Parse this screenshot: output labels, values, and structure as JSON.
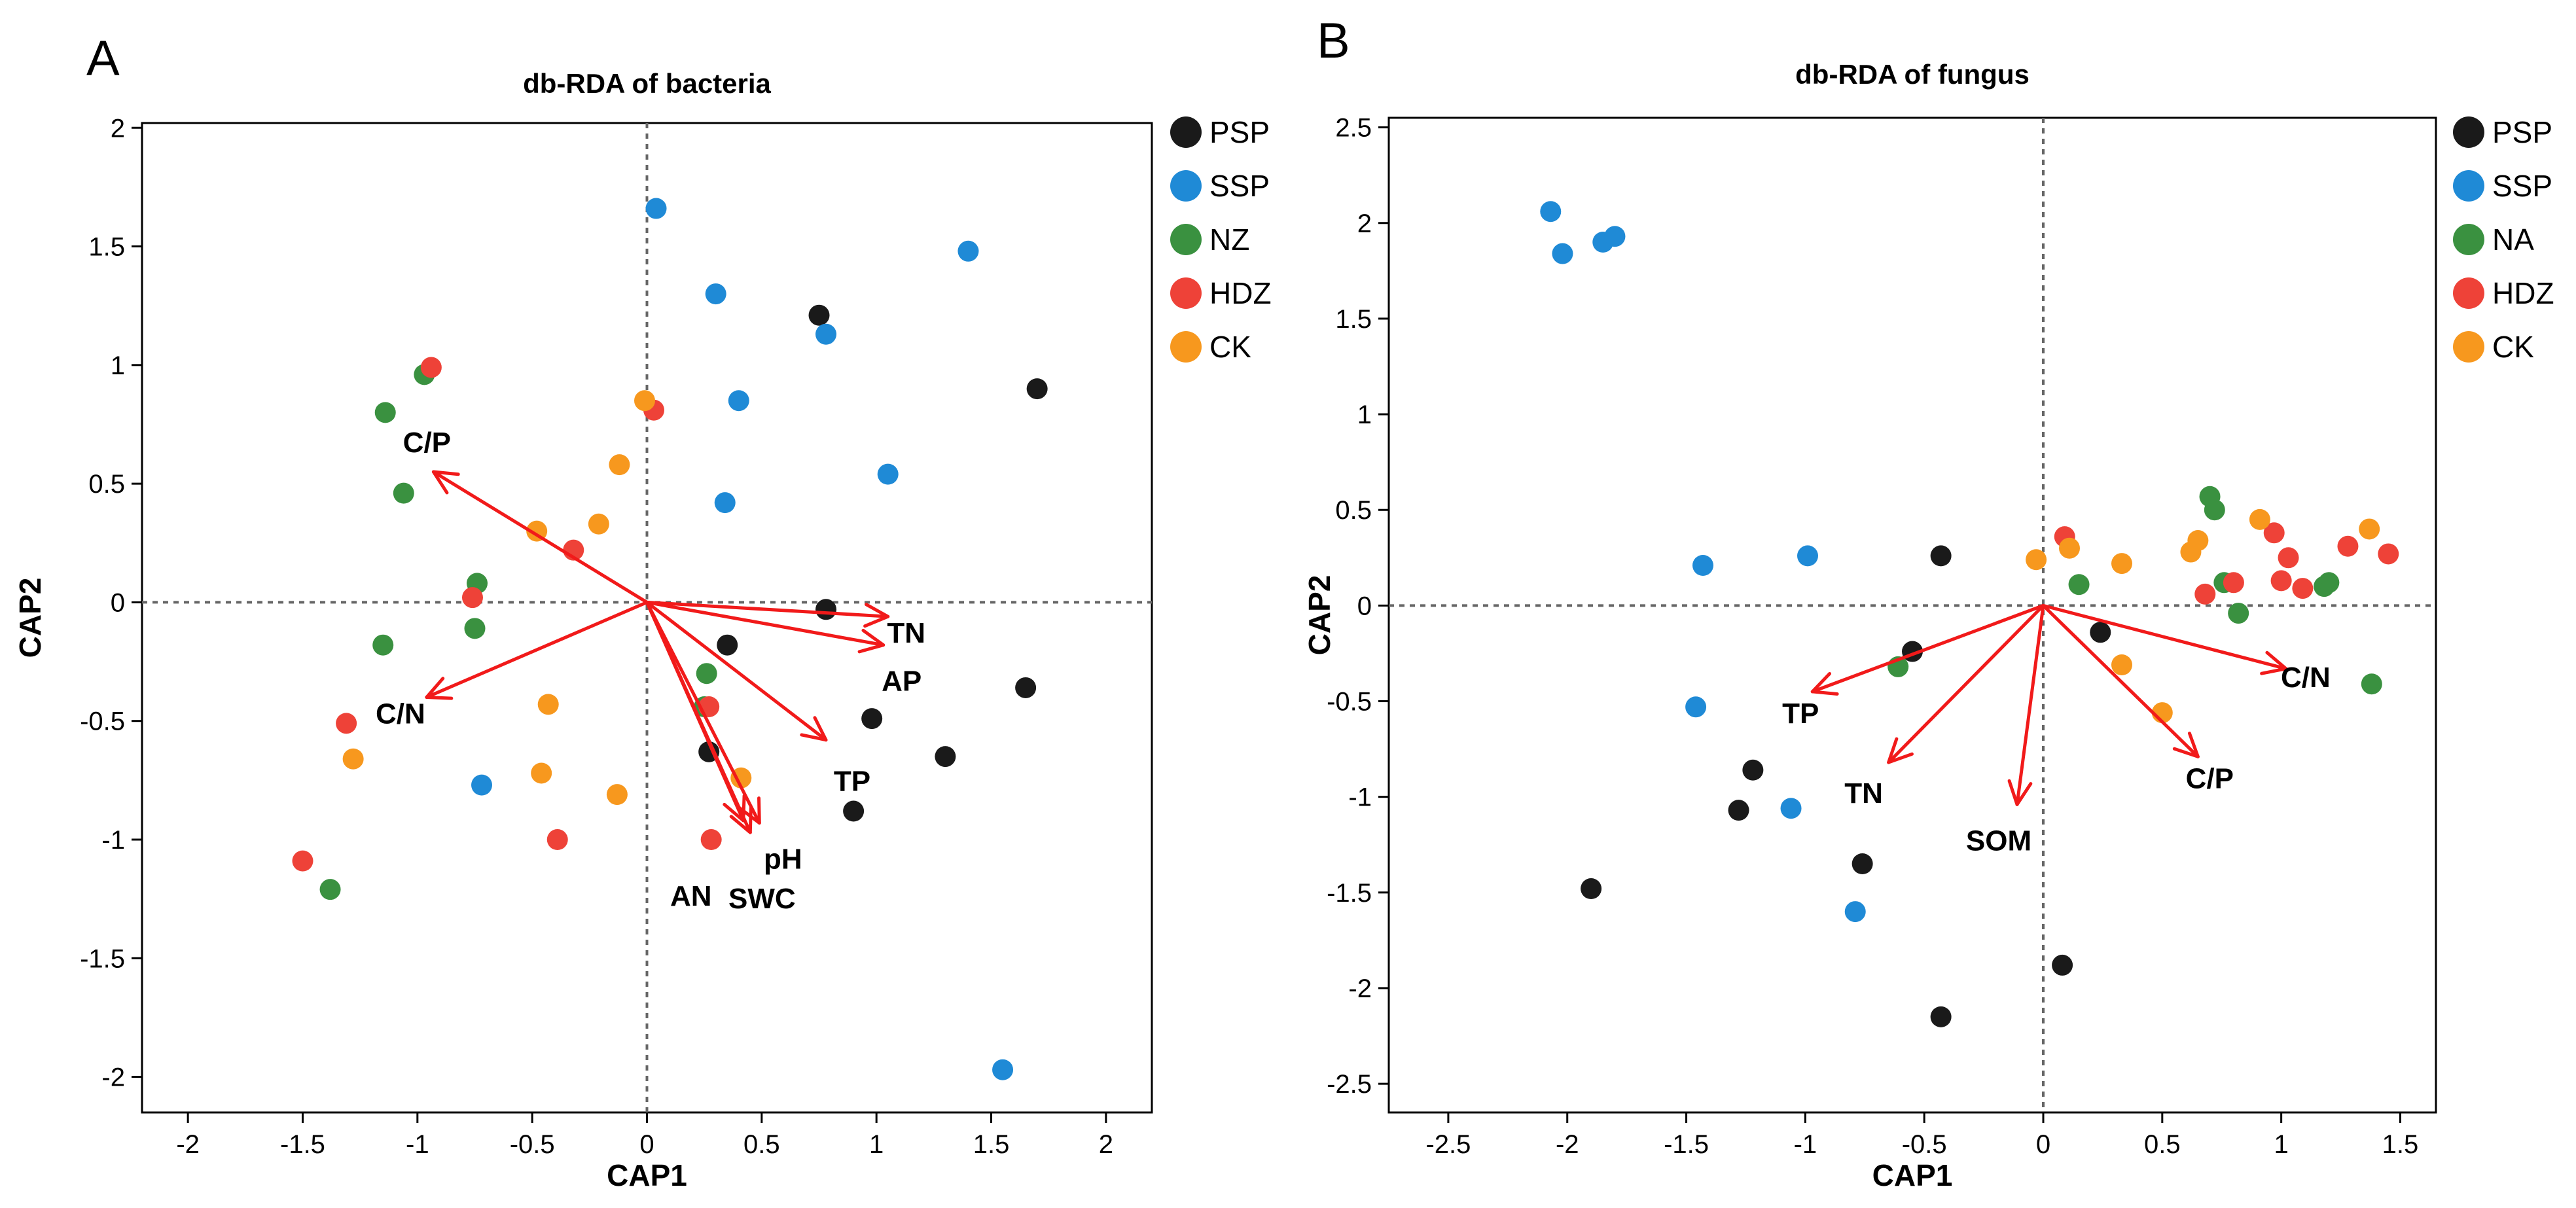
{
  "figure": {
    "panel_A_letter": "A",
    "panel_B_letter": "B"
  },
  "colors": {
    "PSP": "#1a1a1a",
    "SSP": "#1f8ad6",
    "green": "#3a9140",
    "HDZ": "#ee4238",
    "CK": "#f7981e",
    "arrow": "#f11a1a"
  },
  "chart_data": [
    {
      "type": "scatter",
      "panel": "A",
      "title": "db-RDA of bacteria",
      "xlabel": "CAP1",
      "ylabel": "CAP2",
      "xlim": [
        -2.2,
        2.2
      ],
      "ylim": [
        -2.15,
        2.02
      ],
      "xticks": [
        -2,
        -1.5,
        -1,
        -0.5,
        0,
        0.5,
        1,
        1.5,
        2
      ],
      "yticks": [
        -2,
        -1.5,
        -1,
        -0.5,
        0,
        0.5,
        1,
        1.5,
        2
      ],
      "xtick_labels": [
        "-2",
        "-1.5",
        "-1",
        "-0.5",
        "0",
        "0.5",
        "1",
        "1.5",
        "2"
      ],
      "ytick_labels": [
        "-2",
        "-1.5",
        "-1",
        "-0.5",
        "0",
        "0.5",
        "1",
        "1.5",
        "2"
      ],
      "reference_lines": {
        "x": 0,
        "y": 0
      },
      "legend_position": "right",
      "series": [
        {
          "name": "PSP",
          "color": "#1a1a1a",
          "points": [
            [
              0.75,
              1.21
            ],
            [
              1.7,
              0.9
            ],
            [
              0.78,
              -0.03
            ],
            [
              0.35,
              -0.18
            ],
            [
              0.98,
              -0.49
            ],
            [
              1.65,
              -0.36
            ],
            [
              1.3,
              -0.65
            ],
            [
              0.9,
              -0.88
            ],
            [
              0.27,
              -0.63
            ]
          ]
        },
        {
          "name": "SSP",
          "color": "#1f8ad6",
          "points": [
            [
              0.04,
              1.66
            ],
            [
              0.3,
              1.3
            ],
            [
              0.78,
              1.13
            ],
            [
              0.4,
              0.85
            ],
            [
              1.4,
              1.48
            ],
            [
              1.05,
              0.54
            ],
            [
              0.34,
              0.42
            ],
            [
              -0.72,
              -0.77
            ],
            [
              1.55,
              -1.97
            ]
          ]
        },
        {
          "name": "NZ",
          "color": "#3a9140",
          "points": [
            [
              -0.97,
              0.96
            ],
            [
              -1.14,
              0.8
            ],
            [
              -1.06,
              0.46
            ],
            [
              -0.74,
              0.08
            ],
            [
              -0.75,
              -0.11
            ],
            [
              -1.15,
              -0.18
            ],
            [
              0.26,
              -0.3
            ],
            [
              0.25,
              -0.44
            ],
            [
              -1.38,
              -1.21
            ]
          ]
        },
        {
          "name": "HDZ",
          "color": "#ee4238",
          "points": [
            [
              -0.94,
              0.99
            ],
            [
              0.03,
              0.81
            ],
            [
              -0.32,
              0.22
            ],
            [
              -0.76,
              0.02
            ],
            [
              0.27,
              -0.44
            ],
            [
              -1.31,
              -0.51
            ],
            [
              -1.5,
              -1.09
            ],
            [
              -0.39,
              -1.0
            ],
            [
              0.28,
              -1.0
            ]
          ]
        },
        {
          "name": "CK",
          "color": "#f7981e",
          "points": [
            [
              -0.01,
              0.85
            ],
            [
              -0.12,
              0.58
            ],
            [
              -0.21,
              0.33
            ],
            [
              -0.48,
              0.3
            ],
            [
              -0.43,
              -0.43
            ],
            [
              -1.28,
              -0.66
            ],
            [
              -0.46,
              -0.72
            ],
            [
              0.41,
              -0.74
            ],
            [
              -0.13,
              -0.81
            ]
          ]
        }
      ],
      "vectors": [
        {
          "label": "C/P",
          "x": -0.93,
          "y": 0.55
        },
        {
          "label": "C/N",
          "x": -0.96,
          "y": -0.4
        },
        {
          "label": "TN",
          "x": 1.05,
          "y": -0.06
        },
        {
          "label": "AP",
          "x": 1.03,
          "y": -0.18
        },
        {
          "label": "TP",
          "x": 0.78,
          "y": -0.58
        },
        {
          "label": "pH",
          "x": 0.49,
          "y": -0.93
        },
        {
          "label": "SWC",
          "x": 0.45,
          "y": -0.97
        },
        {
          "label": "AN",
          "x": 0.42,
          "y": -0.92
        }
      ]
    },
    {
      "type": "scatter",
      "panel": "B",
      "title": "db-RDA of fungus",
      "xlabel": "CAP1",
      "ylabel": "CAP2",
      "xlim": [
        -2.75,
        1.65
      ],
      "ylim": [
        -2.65,
        2.55
      ],
      "xticks": [
        -2.5,
        -2,
        -1.5,
        -1,
        -0.5,
        0,
        0.5,
        1,
        1.5
      ],
      "yticks": [
        -2.5,
        -2,
        -1.5,
        -1,
        -0.5,
        0,
        0.5,
        1,
        1.5,
        2,
        2.5
      ],
      "xtick_labels": [
        "-2.5",
        "-2",
        "-1.5",
        "-1",
        "-0.5",
        "0",
        "0.5",
        "1",
        "1.5"
      ],
      "ytick_labels": [
        "-2.5",
        "-2",
        "-1.5",
        "-1",
        "-0.5",
        "0",
        "0.5",
        "1",
        "1.5",
        "2",
        "2.5"
      ],
      "reference_lines": {
        "x": 0,
        "y": 0
      },
      "legend_position": "right",
      "series": [
        {
          "name": "PSP",
          "color": "#1a1a1a",
          "points": [
            [
              -0.43,
              0.26
            ],
            [
              -0.55,
              -0.24
            ],
            [
              0.24,
              -0.14
            ],
            [
              -1.22,
              -0.86
            ],
            [
              -1.28,
              -1.07
            ],
            [
              -0.76,
              -1.35
            ],
            [
              -1.9,
              -1.48
            ],
            [
              0.08,
              -1.88
            ],
            [
              -0.43,
              -2.15
            ]
          ]
        },
        {
          "name": "SSP",
          "color": "#1f8ad6",
          "points": [
            [
              -2.07,
              2.06
            ],
            [
              -1.85,
              1.9
            ],
            [
              -1.8,
              1.93
            ],
            [
              -2.02,
              1.84
            ],
            [
              -1.43,
              0.21
            ],
            [
              -0.99,
              0.26
            ],
            [
              -1.46,
              -0.53
            ],
            [
              -1.06,
              -1.06
            ],
            [
              -0.79,
              -1.6
            ]
          ]
        },
        {
          "name": "NA",
          "color": "#3a9140",
          "points": [
            [
              0.7,
              0.57
            ],
            [
              0.72,
              0.5
            ],
            [
              0.76,
              0.12
            ],
            [
              0.15,
              0.11
            ],
            [
              0.82,
              -0.04
            ],
            [
              1.18,
              0.1
            ],
            [
              1.2,
              0.12
            ],
            [
              -0.61,
              -0.32
            ],
            [
              1.38,
              -0.41
            ]
          ]
        },
        {
          "name": "HDZ",
          "color": "#ee4238",
          "points": [
            [
              0.09,
              0.36
            ],
            [
              0.97,
              0.38
            ],
            [
              1.03,
              0.25
            ],
            [
              1.28,
              0.31
            ],
            [
              1.45,
              0.27
            ],
            [
              0.8,
              0.12
            ],
            [
              1.0,
              0.13
            ],
            [
              1.09,
              0.09
            ],
            [
              0.68,
              0.06
            ]
          ]
        },
        {
          "name": "CK",
          "color": "#f7981e",
          "points": [
            [
              -0.03,
              0.24
            ],
            [
              0.11,
              0.3
            ],
            [
              0.33,
              0.22
            ],
            [
              0.65,
              0.34
            ],
            [
              0.62,
              0.28
            ],
            [
              0.91,
              0.45
            ],
            [
              1.37,
              0.4
            ],
            [
              0.33,
              -0.31
            ],
            [
              0.5,
              -0.56
            ]
          ]
        }
      ],
      "vectors": [
        {
          "label": "TP",
          "x": -0.97,
          "y": -0.45
        },
        {
          "label": "TN",
          "x": -0.65,
          "y": -0.82
        },
        {
          "label": "SOM",
          "x": -0.11,
          "y": -1.04
        },
        {
          "label": "C/P",
          "x": 0.65,
          "y": -0.79
        },
        {
          "label": "C/N",
          "x": 1.02,
          "y": -0.33
        }
      ]
    }
  ]
}
